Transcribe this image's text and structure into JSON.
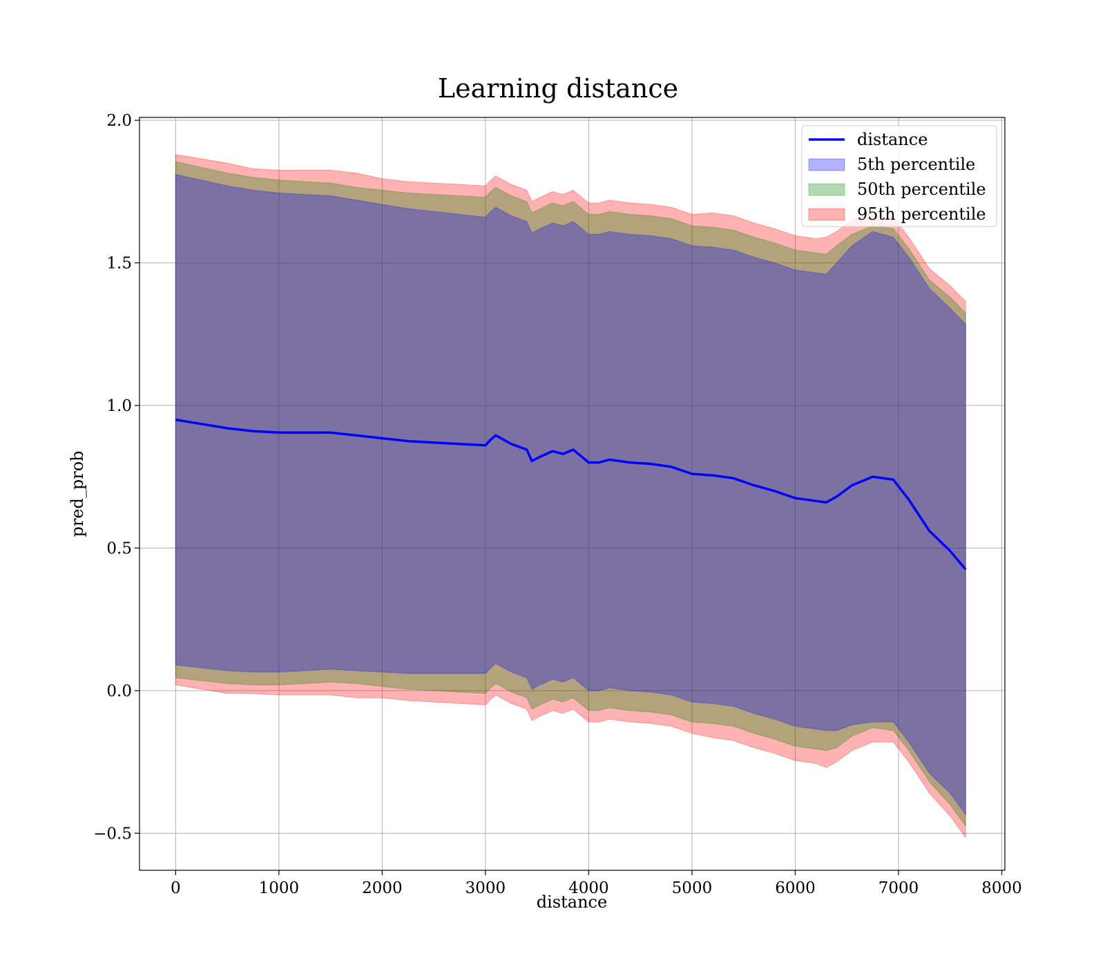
{
  "chart_data": {
    "type": "line",
    "title": "Learning distance",
    "xlabel": "distance",
    "ylabel": "pred_prob",
    "xlim": [
      -350,
      8030
    ],
    "ylim": [
      -0.63,
      2.01
    ],
    "xticks": [
      0,
      1000,
      2000,
      3000,
      4000,
      5000,
      6000,
      7000,
      8000
    ],
    "xtick_labels": [
      "0",
      "1000",
      "2000",
      "3000",
      "4000",
      "5000",
      "6000",
      "7000",
      "8000"
    ],
    "yticks": [
      -0.5,
      0.0,
      0.5,
      1.0,
      1.5,
      2.0
    ],
    "ytick_labels": [
      "−0.5",
      "0.0",
      "0.5",
      "1.0",
      "1.5",
      "2.0"
    ],
    "grid": true,
    "legend_position": "top-right",
    "colors": {
      "line": "#0000ff",
      "band_5": "#0000ff",
      "band_50": "#008000",
      "band_95": "#ff0000",
      "grid": "#b0b0b0"
    },
    "line": {
      "name": "distance",
      "x": [
        0,
        250,
        500,
        750,
        1000,
        1250,
        1500,
        1750,
        2000,
        2250,
        2500,
        2750,
        3000,
        3050,
        3100,
        3250,
        3400,
        3450,
        3500,
        3650,
        3750,
        3850,
        4000,
        4100,
        4200,
        4400,
        4600,
        4800,
        5000,
        5200,
        5400,
        5600,
        5800,
        6000,
        6200,
        6300,
        6400,
        6550,
        6750,
        6950,
        7100,
        7300,
        7500,
        7650
      ],
      "y": [
        0.95,
        0.935,
        0.92,
        0.91,
        0.905,
        0.905,
        0.905,
        0.895,
        0.885,
        0.875,
        0.87,
        0.865,
        0.86,
        0.88,
        0.895,
        0.865,
        0.845,
        0.805,
        0.815,
        0.84,
        0.83,
        0.845,
        0.8,
        0.8,
        0.81,
        0.8,
        0.795,
        0.785,
        0.76,
        0.755,
        0.745,
        0.72,
        0.7,
        0.675,
        0.665,
        0.66,
        0.68,
        0.72,
        0.75,
        0.74,
        0.67,
        0.56,
        0.49,
        0.425
      ]
    },
    "bands": [
      {
        "name": "5th percentile",
        "color": "#0000ff",
        "half_width": [
          0.86,
          0.855,
          0.85,
          0.845,
          0.84,
          0.835,
          0.83,
          0.825,
          0.82,
          0.815,
          0.81,
          0.805,
          0.8,
          0.8,
          0.8,
          0.8,
          0.8,
          0.8,
          0.8,
          0.8,
          0.8,
          0.8,
          0.8,
          0.8,
          0.8,
          0.8,
          0.8,
          0.8,
          0.8,
          0.8,
          0.8,
          0.8,
          0.8,
          0.8,
          0.8,
          0.8,
          0.82,
          0.84,
          0.86,
          0.85,
          0.85,
          0.85,
          0.85,
          0.86
        ]
      },
      {
        "name": "50th percentile",
        "color": "#008000",
        "half_width": [
          0.905,
          0.9,
          0.895,
          0.89,
          0.885,
          0.88,
          0.875,
          0.87,
          0.87,
          0.87,
          0.87,
          0.87,
          0.87,
          0.87,
          0.87,
          0.87,
          0.87,
          0.87,
          0.87,
          0.87,
          0.87,
          0.87,
          0.87,
          0.87,
          0.87,
          0.87,
          0.87,
          0.87,
          0.87,
          0.87,
          0.87,
          0.87,
          0.87,
          0.87,
          0.87,
          0.87,
          0.88,
          0.88,
          0.88,
          0.88,
          0.88,
          0.88,
          0.89,
          0.9
        ]
      },
      {
        "name": "95th percentile",
        "color": "#ff0000",
        "half_width": [
          0.93,
          0.93,
          0.93,
          0.92,
          0.92,
          0.92,
          0.92,
          0.92,
          0.91,
          0.91,
          0.91,
          0.91,
          0.91,
          0.91,
          0.91,
          0.91,
          0.91,
          0.91,
          0.91,
          0.91,
          0.91,
          0.91,
          0.91,
          0.91,
          0.91,
          0.91,
          0.91,
          0.91,
          0.91,
          0.92,
          0.92,
          0.92,
          0.92,
          0.92,
          0.92,
          0.93,
          0.93,
          0.93,
          0.93,
          0.92,
          0.92,
          0.92,
          0.93,
          0.94
        ]
      }
    ],
    "legend": [
      {
        "label": "distance",
        "kind": "line",
        "color": "#0000ff"
      },
      {
        "label": "5th percentile",
        "kind": "patch",
        "color": "#0000ff"
      },
      {
        "label": "50th percentile",
        "kind": "patch",
        "color": "#008000"
      },
      {
        "label": "95th percentile",
        "kind": "patch",
        "color": "#ff0000"
      }
    ]
  }
}
